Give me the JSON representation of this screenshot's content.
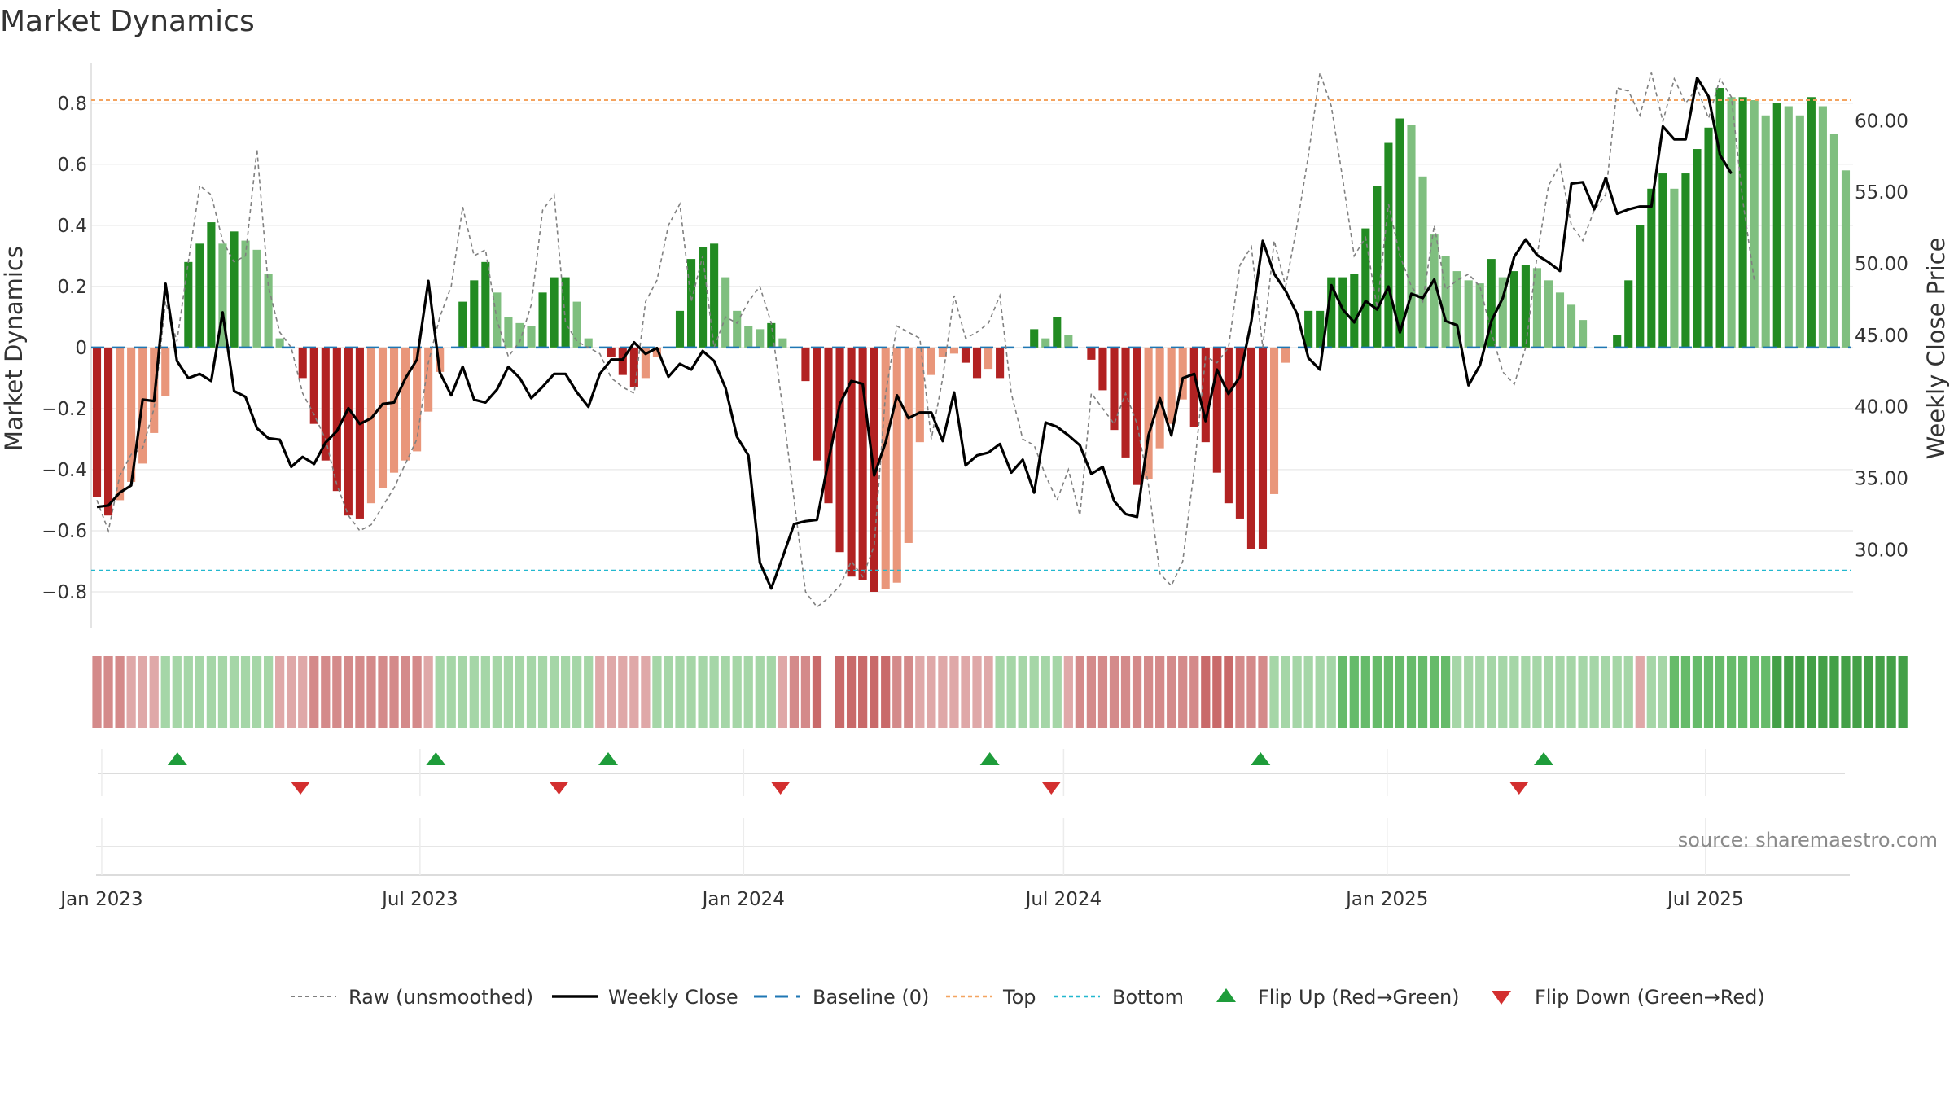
{
  "title": "Market Dynamics",
  "source_note": "source: sharemaestro.com",
  "colors": {
    "strong_red": "#b22222",
    "weak_red": "#e9967a",
    "strong_green": "#228b22",
    "weak_green": "#7fbf7f",
    "top_line": "#f4a460",
    "bottom_line": "#22b8cf",
    "baseline": "#1f77b4",
    "weekly_close": "#000000",
    "raw": "#808080",
    "flip_up": "#1e9c3a",
    "flip_down": "#d32f2f"
  },
  "chart_data": {
    "type": "bar+line",
    "left_axis": {
      "label": "Market Dynamics",
      "range": [
        -0.92,
        0.93
      ],
      "ticks": [
        -0.8,
        -0.6,
        -0.4,
        -0.2,
        0,
        0.2,
        0.4,
        0.6,
        0.8
      ],
      "tick_labels": [
        "−0.8",
        "−0.6",
        "−0.4",
        "−0.2",
        "0",
        "0.2",
        "0.4",
        "0.6",
        "0.8"
      ]
    },
    "right_axis": {
      "label": "Weekly Close Price",
      "range": [
        24.5,
        64.0
      ],
      "ticks": [
        30,
        35,
        40,
        45,
        50,
        55,
        60
      ],
      "tick_labels": [
        "30.00",
        "35.00",
        "40.00",
        "45.00",
        "50.00",
        "55.00",
        "60.00"
      ]
    },
    "x_axis": {
      "start": "2022-12-26",
      "end": "2025-09-22",
      "tick_dates": [
        "2023-01-01",
        "2023-07-01",
        "2024-01-01",
        "2024-07-01",
        "2025-01-01",
        "2025-07-01"
      ],
      "tick_labels": [
        "Jan 2023",
        "Jul 2023",
        "Jan 2024",
        "Jul 2024",
        "Jan 2025",
        "Jul 2025"
      ]
    },
    "top_level": 0.81,
    "bottom_level": -0.73,
    "grid": true,
    "market_dynamics": [
      -0.49,
      -0.55,
      -0.5,
      -0.44,
      -0.38,
      -0.28,
      -0.16,
      0.0,
      0.28,
      0.34,
      0.41,
      0.34,
      0.38,
      0.35,
      0.32,
      0.24,
      0.03,
      0.0,
      -0.1,
      -0.25,
      -0.37,
      -0.47,
      -0.55,
      -0.56,
      -0.51,
      -0.46,
      -0.41,
      -0.37,
      -0.34,
      -0.21,
      -0.08,
      0.0,
      0.15,
      0.22,
      0.28,
      0.18,
      0.1,
      0.08,
      0.07,
      0.18,
      0.23,
      0.23,
      0.15,
      0.03,
      0.0,
      -0.03,
      -0.09,
      -0.13,
      -0.1,
      -0.03,
      0.0,
      0.12,
      0.29,
      0.33,
      0.34,
      0.23,
      0.12,
      0.07,
      0.06,
      0.08,
      0.03,
      0.0,
      -0.11,
      -0.37,
      -0.51,
      -0.67,
      -0.75,
      -0.76,
      -0.8,
      -0.79,
      -0.77,
      -0.64,
      -0.31,
      -0.09,
      -0.03,
      -0.02,
      -0.05,
      -0.1,
      -0.07,
      -0.1,
      0.0,
      0.0,
      0.06,
      0.03,
      0.1,
      0.04,
      0.0,
      -0.04,
      -0.14,
      -0.27,
      -0.36,
      -0.45,
      -0.43,
      -0.33,
      -0.25,
      -0.17,
      -0.26,
      -0.31,
      -0.41,
      -0.51,
      -0.56,
      -0.66,
      -0.66,
      -0.48,
      -0.05,
      0.0,
      0.12,
      0.12,
      0.23,
      0.23,
      0.24,
      0.39,
      0.53,
      0.67,
      0.75,
      0.73,
      0.56,
      0.37,
      0.3,
      0.25,
      0.22,
      0.21,
      0.29,
      0.23,
      0.25,
      0.27,
      0.26,
      0.22,
      0.18,
      0.14,
      0.09,
      0.0,
      0.0,
      0.04,
      0.22,
      0.4,
      0.52,
      0.57,
      0.52,
      0.57,
      0.65,
      0.72,
      0.85,
      0.82,
      0.82,
      0.81,
      0.76,
      0.8,
      0.79,
      0.76,
      0.82,
      0.79,
      0.7,
      0.58
    ],
    "raw_unsmoothed": [
      -0.5,
      -0.6,
      -0.42,
      -0.35,
      -0.33,
      -0.2,
      0.15,
      0.02,
      0.28,
      0.53,
      0.5,
      0.35,
      0.28,
      0.3,
      0.65,
      0.2,
      0.05,
      0.0,
      -0.15,
      -0.22,
      -0.3,
      -0.45,
      -0.55,
      -0.6,
      -0.58,
      -0.52,
      -0.46,
      -0.38,
      -0.3,
      -0.05,
      0.1,
      0.2,
      0.46,
      0.3,
      0.32,
      0.09,
      -0.03,
      0.02,
      0.14,
      0.45,
      0.5,
      0.08,
      0.02,
      0.0,
      -0.02,
      -0.1,
      -0.13,
      -0.15,
      0.15,
      0.22,
      0.4,
      0.47,
      0.15,
      0.3,
      0.0,
      0.1,
      0.08,
      0.15,
      0.2,
      0.08,
      -0.2,
      -0.5,
      -0.8,
      -0.85,
      -0.82,
      -0.78,
      -0.7,
      -0.75,
      -0.65,
      -0.15,
      0.07,
      0.05,
      0.03,
      -0.3,
      -0.1,
      0.17,
      0.03,
      0.05,
      0.08,
      0.17,
      -0.15,
      -0.3,
      -0.32,
      -0.42,
      -0.5,
      -0.4,
      -0.55,
      -0.15,
      -0.2,
      -0.25,
      -0.15,
      -0.25,
      -0.45,
      -0.74,
      -0.78,
      -0.7,
      -0.4,
      -0.03,
      -0.05,
      0.0,
      0.27,
      0.33,
      0.0,
      0.35,
      0.2,
      0.4,
      0.63,
      0.9,
      0.79,
      0.55,
      0.3,
      0.36,
      0.13,
      0.47,
      0.3,
      0.2,
      0.15,
      0.4,
      0.19,
      0.22,
      0.24,
      0.2,
      0.05,
      -0.08,
      -0.12,
      0.0,
      0.3,
      0.53,
      0.6,
      0.4,
      0.35,
      0.45,
      0.5,
      0.85,
      0.84,
      0.76,
      0.9,
      0.74,
      0.88,
      0.8,
      0.85,
      0.75,
      0.88,
      0.82,
      0.48,
      0.22
    ],
    "weekly_close": [
      33.0,
      33.1,
      34.0,
      34.5,
      40.5,
      40.4,
      48.6,
      43.2,
      42.0,
      42.3,
      41.8,
      46.6,
      41.1,
      40.7,
      38.5,
      37.8,
      37.7,
      35.8,
      36.5,
      36.0,
      37.5,
      38.3,
      39.9,
      38.8,
      39.2,
      40.2,
      40.3,
      42.0,
      43.3,
      48.8,
      42.4,
      40.8,
      42.8,
      40.5,
      40.3,
      41.2,
      42.8,
      42.0,
      40.6,
      41.4,
      42.3,
      42.3,
      41.0,
      40.0,
      42.3,
      43.3,
      43.3,
      44.5,
      43.7,
      44.1,
      42.1,
      43.0,
      42.6,
      43.9,
      43.2,
      41.3,
      37.9,
      36.6,
      29.1,
      27.3,
      29.5,
      31.8,
      32.0,
      32.1,
      36.2,
      40.2,
      41.8,
      41.6,
      35.2,
      37.5,
      40.8,
      39.2,
      39.6,
      39.6,
      37.6,
      41.0,
      35.9,
      36.6,
      36.8,
      37.4,
      35.4,
      36.3,
      34.0,
      38.9,
      38.6,
      38.0,
      37.3,
      35.3,
      35.8,
      33.4,
      32.5,
      32.3,
      38.0,
      40.6,
      38.0,
      42.0,
      42.3,
      39.0,
      42.6,
      40.9,
      42.1,
      46.0,
      51.6,
      49.3,
      48.1,
      46.5,
      43.4,
      42.6,
      48.5,
      46.8,
      45.9,
      47.4,
      46.8,
      48.4,
      45.2,
      47.9,
      47.6,
      48.9,
      46.0,
      45.7,
      41.5,
      42.9,
      46.0,
      47.6,
      50.5,
      51.7,
      50.6,
      50.1,
      49.5,
      55.6,
      55.7,
      53.8,
      56.0,
      53.5,
      53.8,
      54.0,
      54.0,
      59.6,
      58.7,
      58.7,
      63.0,
      61.7,
      57.6,
      56.3
    ],
    "regime_strip": [
      -2,
      -2,
      -2,
      -1,
      -1,
      -1,
      1,
      1,
      1,
      1,
      1,
      1,
      1,
      1,
      1,
      1,
      -1,
      -1,
      -1,
      -2,
      -2,
      -2,
      -2,
      -2,
      -2,
      -2,
      -2,
      -2,
      -2,
      -1,
      1,
      1,
      1,
      1,
      1,
      1,
      1,
      1,
      1,
      1,
      1,
      1,
      1,
      1,
      -1,
      -1,
      -1,
      -1,
      -1,
      1,
      1,
      1,
      1,
      1,
      1,
      1,
      1,
      1,
      1,
      1,
      -1,
      -2,
      -2,
      -3,
      0,
      -3,
      -3,
      -3,
      -3,
      -3,
      -2,
      -2,
      -1,
      -1,
      -1,
      -1,
      -1,
      -1,
      -1,
      1,
      1,
      1,
      1,
      1,
      1,
      -1,
      -2,
      -2,
      -2,
      -2,
      -2,
      -2,
      -2,
      -2,
      -2,
      -2,
      -2,
      -3,
      -3,
      -3,
      -2,
      -2,
      -2,
      1,
      1,
      1,
      1,
      1,
      1,
      2,
      2,
      2,
      2,
      2,
      2,
      2,
      2,
      2,
      2,
      1,
      1,
      1,
      1,
      1,
      1,
      1,
      1,
      1,
      1,
      1,
      1,
      1,
      1,
      1,
      1,
      -1,
      1,
      1,
      2,
      2,
      2,
      2,
      2,
      2,
      2,
      2,
      2,
      3,
      3,
      3,
      3,
      3,
      3,
      3,
      3,
      3,
      3,
      3,
      3
    ],
    "flip_up_dates": [
      "2023-02-13",
      "2023-07-10",
      "2023-10-16",
      "2024-05-20",
      "2024-10-21",
      "2025-03-31"
    ],
    "flip_down_dates": [
      "2023-04-24",
      "2023-09-18",
      "2024-01-22",
      "2024-06-24",
      "2025-03-17"
    ],
    "legend": [
      {
        "key": "raw",
        "label": "Raw (unsmoothed)"
      },
      {
        "key": "close",
        "label": "Weekly Close"
      },
      {
        "key": "baseline",
        "label": "Baseline (0)"
      },
      {
        "key": "top",
        "label": "Top"
      },
      {
        "key": "bottom",
        "label": "Bottom"
      },
      {
        "key": "flip_up",
        "label": "Flip Up (Red→Green)"
      },
      {
        "key": "flip_down",
        "label": "Flip Down (Green→Red)"
      }
    ]
  }
}
